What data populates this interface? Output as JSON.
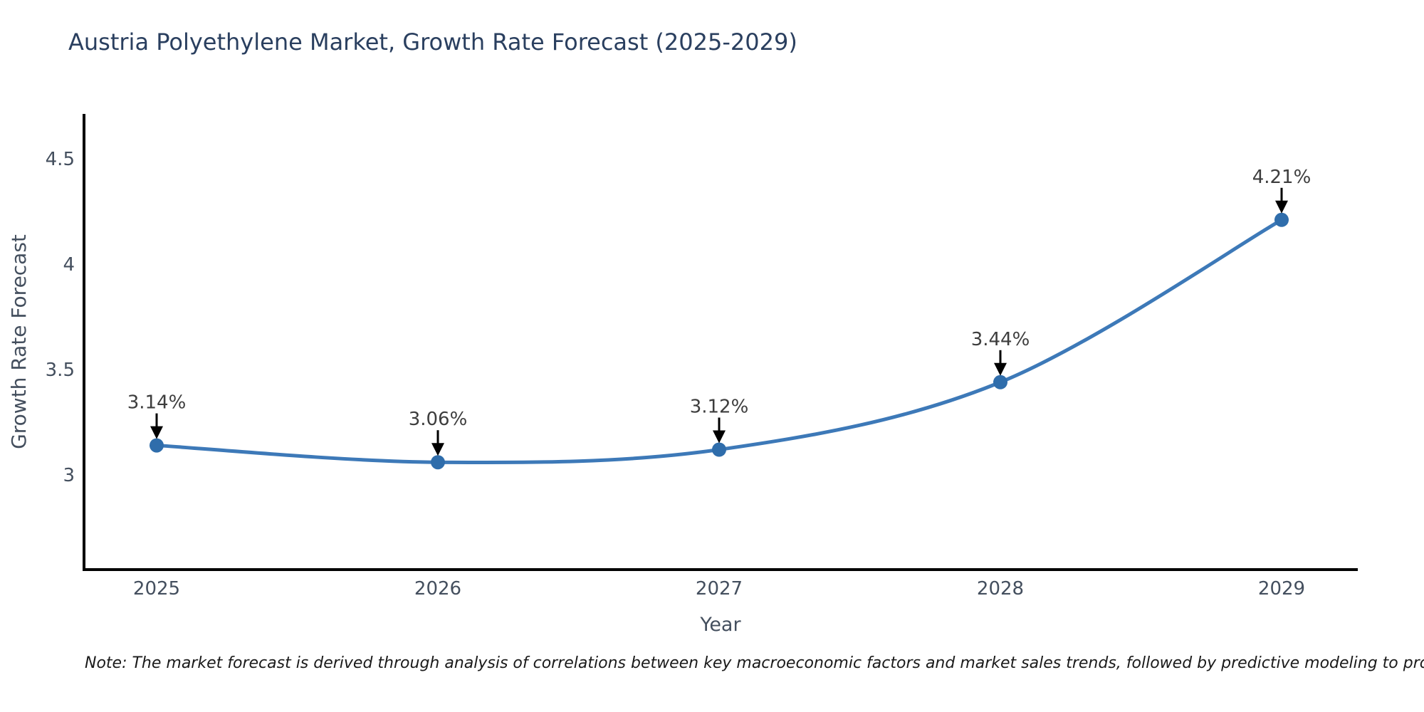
{
  "note": "Note: The market forecast is derived through analysis of correlations between key macroeconomic factors and market sales trends, followed by predictive modeling to project future sales",
  "chart_data": {
    "type": "line",
    "title": "Austria Polyethylene Market, Growth Rate Forecast (2025-2029)",
    "categories": [
      "2025",
      "2026",
      "2027",
      "2028",
      "2029"
    ],
    "values": [
      3.14,
      3.06,
      3.12,
      3.44,
      4.21
    ],
    "labels": [
      "3.14%",
      "3.06%",
      "3.12%",
      "3.44%",
      "4.21%"
    ],
    "xlabel": "Year",
    "ylabel": "Growth Rate Forecast",
    "yticks": [
      3,
      3.5,
      4,
      4.5
    ],
    "ylim": [
      2.55,
      4.72
    ],
    "grid": false,
    "legend": "none",
    "line_shape": "spline",
    "annotation_style": "value label above point with black down arrow",
    "colors": {
      "line": "#3d79b8",
      "marker": "#2f6dab",
      "annotation_text": "#3d3d3d",
      "annotation_arrow": "#000000",
      "axis": "#000000",
      "title_text": "#2a3f5f",
      "tick_text": "#444f5e",
      "background": "#ffffff"
    }
  }
}
